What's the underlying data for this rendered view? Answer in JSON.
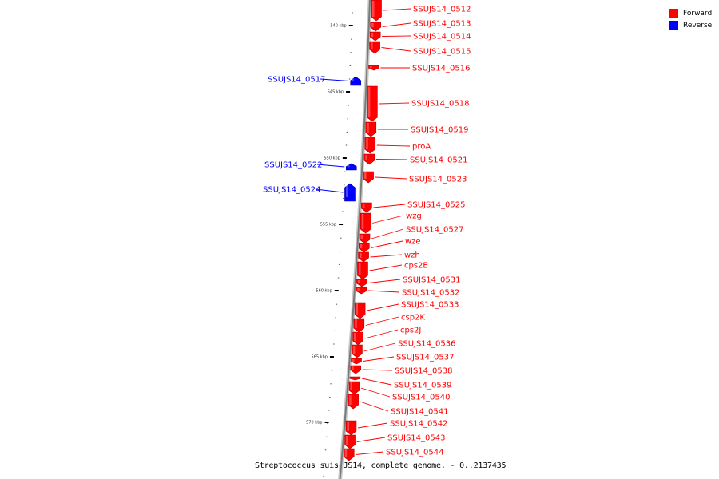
{
  "caption": "Streptococcus suis JS14, complete genome. - 0..2137435",
  "legend": [
    {
      "label": "Forward",
      "color": "#ff0000"
    },
    {
      "label": "Reverse",
      "color": "#0000ff"
    }
  ],
  "colors": {
    "forward": "#ff0000",
    "reverse": "#0000ff",
    "backbone": "#9a9a9a"
  },
  "ticks": [
    {
      "label": "540 kbp",
      "kbp": 540
    },
    {
      "label": "545 kbp",
      "kbp": 545
    },
    {
      "label": "550 kbp",
      "kbp": 550
    },
    {
      "label": "555 kbp",
      "kbp": 555
    },
    {
      "label": "560 kbp",
      "kbp": 560
    },
    {
      "label": "565 kbp",
      "kbp": 565
    },
    {
      "label": "570 kbp",
      "kbp": 570
    }
  ],
  "features": [
    {
      "name": "SSUJS14_0512",
      "strand": "forward"
    },
    {
      "name": "SSUJS14_0513",
      "strand": "forward"
    },
    {
      "name": "SSUJS14_0514",
      "strand": "forward"
    },
    {
      "name": "SSUJS14_0515",
      "strand": "forward"
    },
    {
      "name": "SSUJS14_0516",
      "strand": "forward"
    },
    {
      "name": "SSUJS14_0517",
      "strand": "reverse"
    },
    {
      "name": "SSUJS14_0518",
      "strand": "forward"
    },
    {
      "name": "SSUJS14_0519",
      "strand": "forward"
    },
    {
      "name": "proA",
      "strand": "forward"
    },
    {
      "name": "SSUJS14_0521",
      "strand": "forward"
    },
    {
      "name": "SSUJS14_0522",
      "strand": "reverse"
    },
    {
      "name": "SSUJS14_0523",
      "strand": "forward"
    },
    {
      "name": "SSUJS14_0524",
      "strand": "reverse"
    },
    {
      "name": "SSUJS14_0525",
      "strand": "forward"
    },
    {
      "name": "wzg",
      "strand": "forward"
    },
    {
      "name": "SSUJS14_0527",
      "strand": "forward"
    },
    {
      "name": "wze",
      "strand": "forward"
    },
    {
      "name": "wzh",
      "strand": "forward"
    },
    {
      "name": "cps2E",
      "strand": "forward"
    },
    {
      "name": "SSUJS14_0531",
      "strand": "forward"
    },
    {
      "name": "SSUJS14_0532",
      "strand": "forward"
    },
    {
      "name": "SSUJS14_0533",
      "strand": "forward"
    },
    {
      "name": "csp2K",
      "strand": "forward"
    },
    {
      "name": "cps2J",
      "strand": "forward"
    },
    {
      "name": "SSUJS14_0536",
      "strand": "forward"
    },
    {
      "name": "SSUJS14_0537",
      "strand": "forward"
    },
    {
      "name": "SSUJS14_0538",
      "strand": "forward"
    },
    {
      "name": "SSUJS14_0539",
      "strand": "forward"
    },
    {
      "name": "SSUJS14_0540",
      "strand": "forward"
    },
    {
      "name": "SSUJS14_0541",
      "strand": "forward"
    },
    {
      "name": "SSUJS14_0542",
      "strand": "forward"
    },
    {
      "name": "SSUJS14_0543",
      "strand": "forward"
    },
    {
      "name": "SSUJS14_0544",
      "strand": "forward"
    }
  ]
}
